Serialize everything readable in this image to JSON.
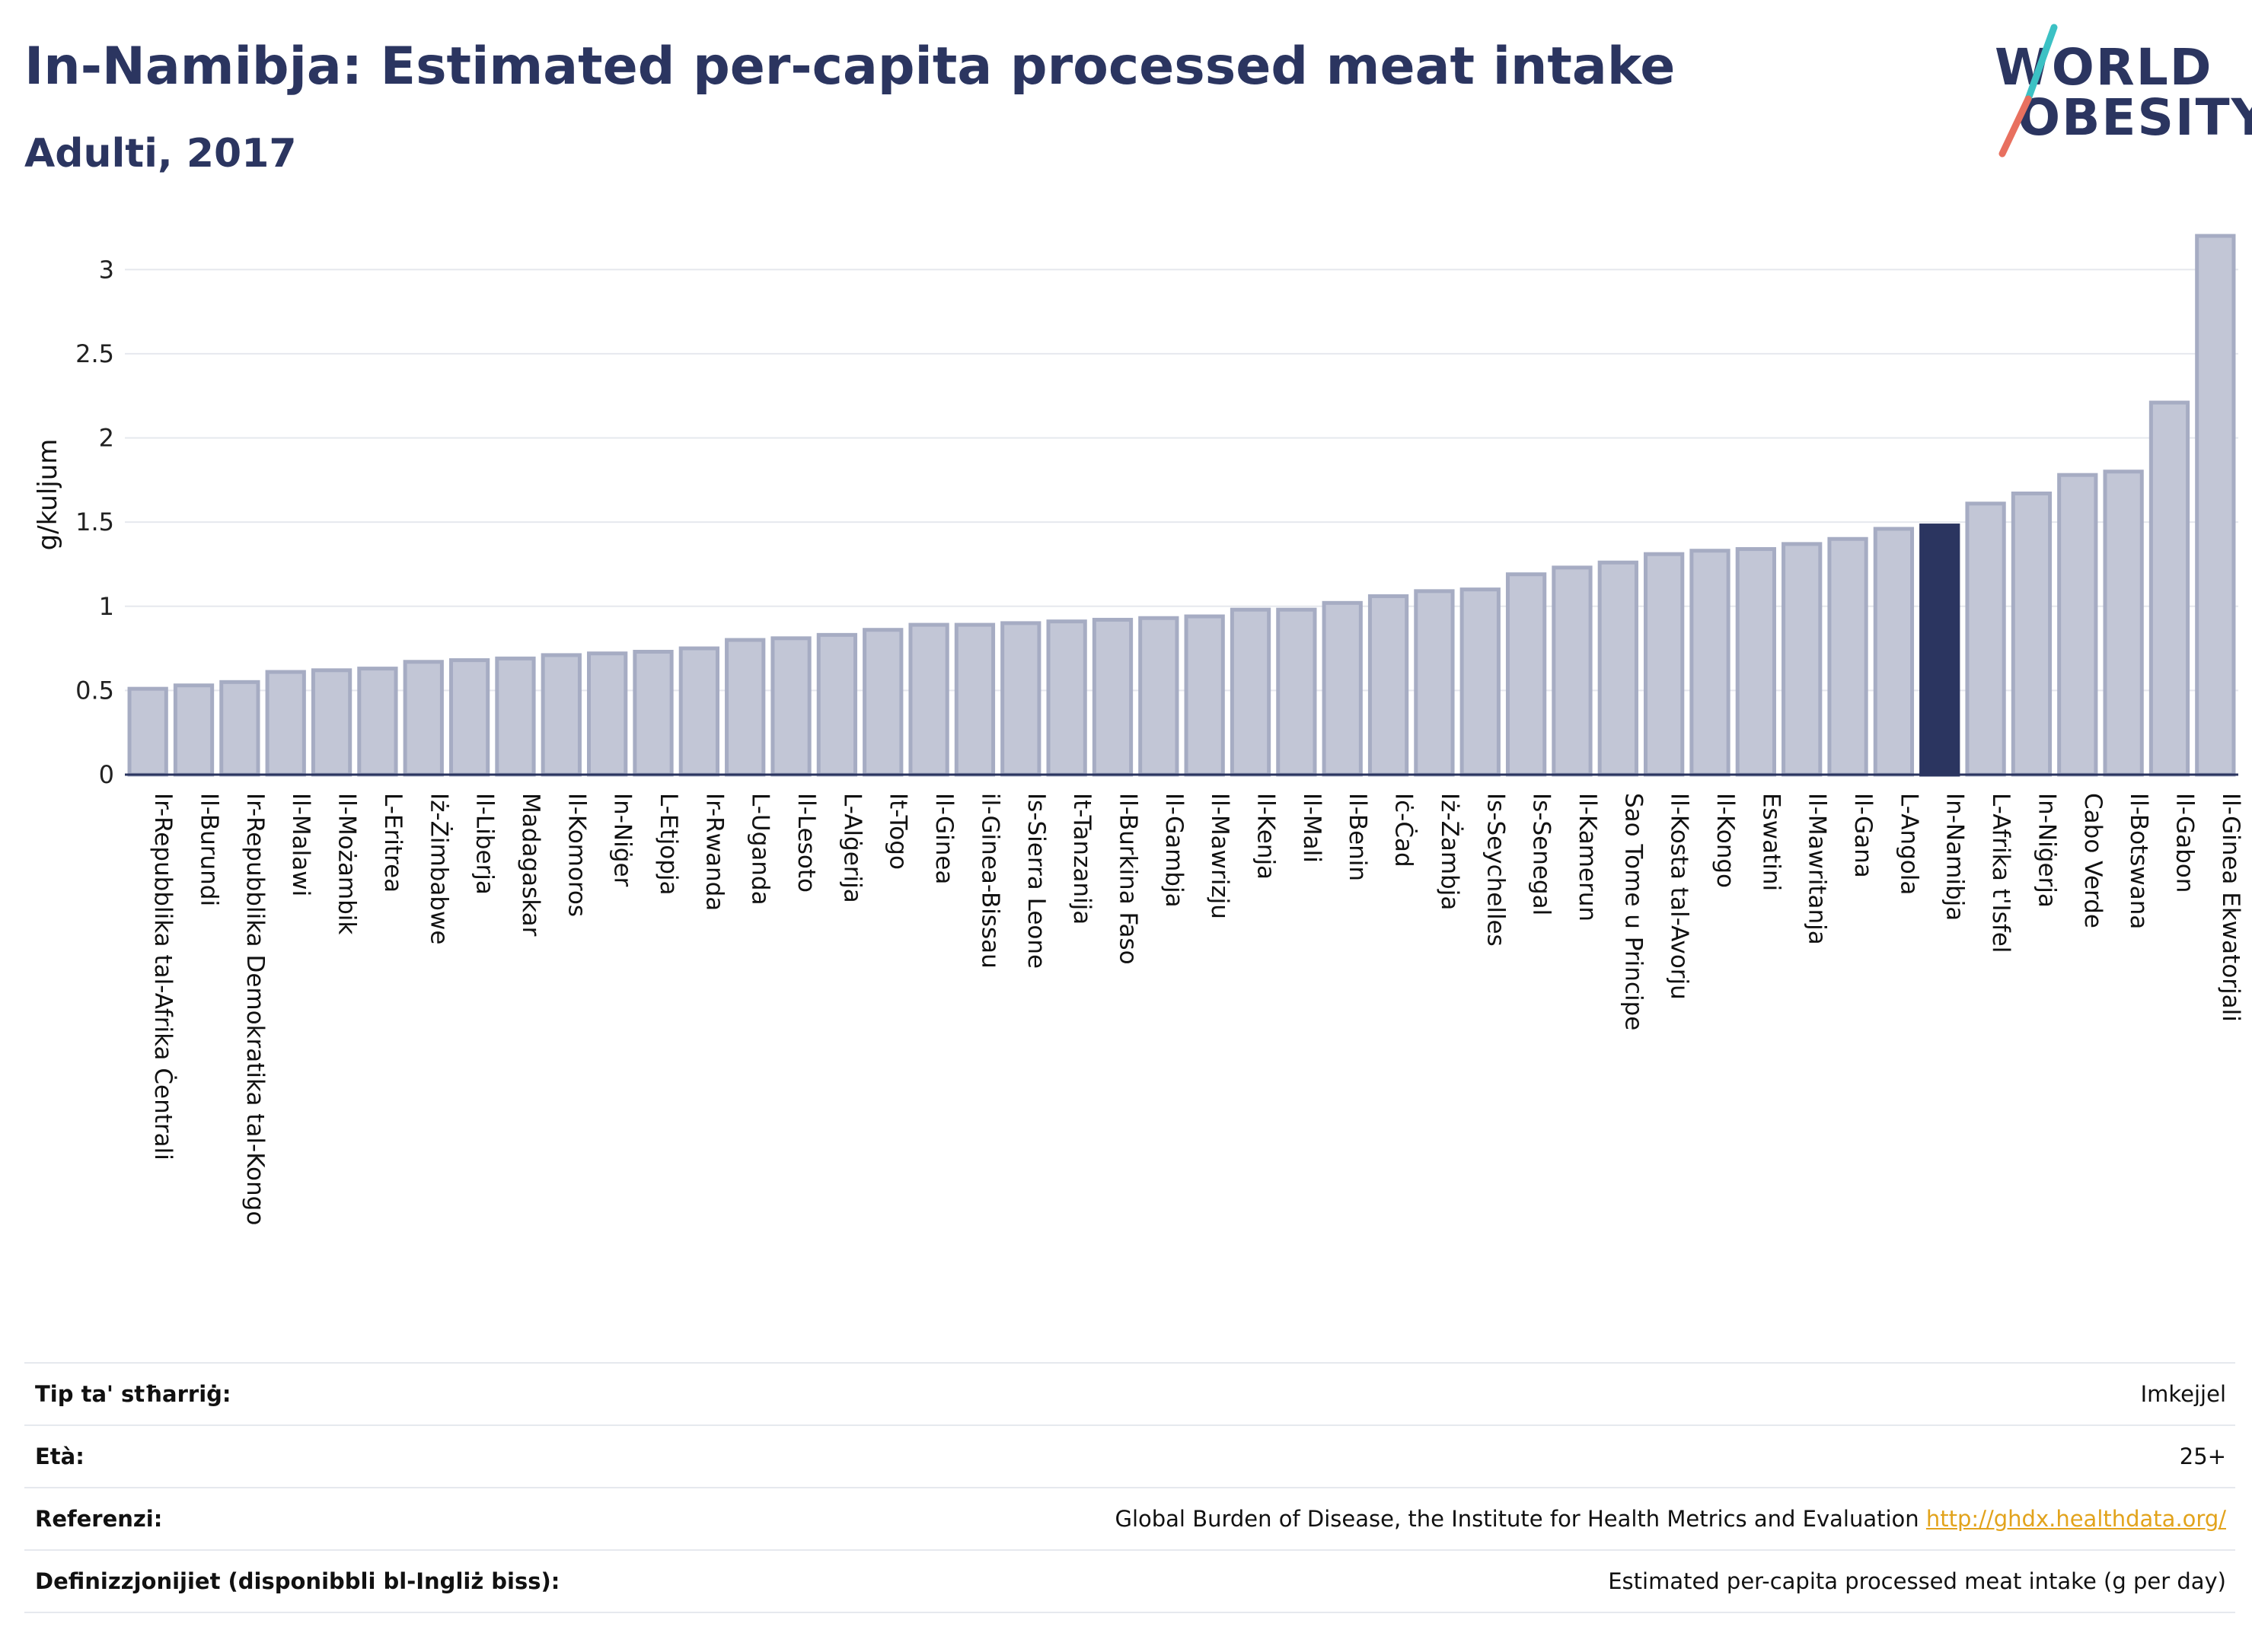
{
  "title": "In-Namibja: Estimated per-capita processed meat intake",
  "subtitle": "Adulti, 2017",
  "logo": {
    "line1": "WORLD",
    "line2": "OBESITY",
    "accent_colors": [
      "#3cc1c4",
      "#e8705f"
    ]
  },
  "colors": {
    "bar": "#c2c6d6",
    "bar_border": "#a6acc3",
    "highlight": "#2b3560",
    "grid": "#e6e8ee"
  },
  "chart_data": {
    "type": "bar",
    "ylabel": "g/kuljum",
    "ylim": [
      0,
      3.2
    ],
    "yticks": [
      0,
      0.5,
      1,
      1.5,
      2,
      2.5,
      3
    ],
    "highlight": "In-Namibja",
    "grid": true,
    "categories": [
      "Ir-Repubblika tal-Afrika Ċentrali",
      "Il-Burundi",
      "Ir-Repubblika Demokratika tal-Kongo",
      "Il-Malawi",
      "Il-Możambik",
      "L-Eritrea",
      "Iż-Żimbabwe",
      "Il-Liberja",
      "Madagaskar",
      "Il-Komoros",
      "In-Niġer",
      "L-Etjopja",
      "Ir-Rwanda",
      "L-Uganda",
      "Il-Lesoto",
      "L-Alġerija",
      "It-Togo",
      "Il-Ginea",
      "il-Ginea-Bissau",
      "Is-Sierra Leone",
      "It-Tanzanija",
      "Il-Burkina Faso",
      "Il-Gambja",
      "Il-Mawrizju",
      "Il-Kenja",
      "Il-Mali",
      "Il-Benin",
      "Iċ-Ċad",
      "Iż-Żambja",
      "Is-Seychelles",
      "Is-Senegal",
      "Il-Kamerun",
      "Sao Tome u Principe",
      "Il-Kosta tal-Avorju",
      "Il-Kongo",
      "Eswatini",
      "Il-Mawritanja",
      "Il-Gana",
      "L-Angola",
      "In-Namibja",
      "L-Afrika t'Isfel",
      "In-Niġerja",
      "Cabo Verde",
      "Il-Botswana",
      "Il-Gabon",
      "Il-Ginea Ekwatorjali"
    ],
    "values": [
      0.51,
      0.53,
      0.55,
      0.61,
      0.62,
      0.63,
      0.67,
      0.68,
      0.69,
      0.71,
      0.72,
      0.73,
      0.75,
      0.8,
      0.81,
      0.83,
      0.86,
      0.89,
      0.89,
      0.9,
      0.91,
      0.92,
      0.93,
      0.94,
      0.98,
      0.98,
      1.02,
      1.06,
      1.09,
      1.1,
      1.19,
      1.23,
      1.26,
      1.31,
      1.33,
      1.34,
      1.37,
      1.4,
      1.46,
      1.48,
      1.61,
      1.67,
      1.78,
      1.8,
      2.21,
      3.2
    ]
  },
  "info": {
    "rows": [
      {
        "key": "Tip ta' stħarriġ:",
        "value": "Imkejjel"
      },
      {
        "key": "Età:",
        "value": "25+"
      },
      {
        "key": "Referenzi:",
        "value": "Global Burden of Disease, the Institute for Health Metrics and Evaluation",
        "link": "http://ghdx.healthdata.org/"
      },
      {
        "key": "Definizzjonijiet (disponibbli bl-Ingliż biss):",
        "value": "Estimated per-capita processed meat intake (g per day)"
      }
    ]
  }
}
